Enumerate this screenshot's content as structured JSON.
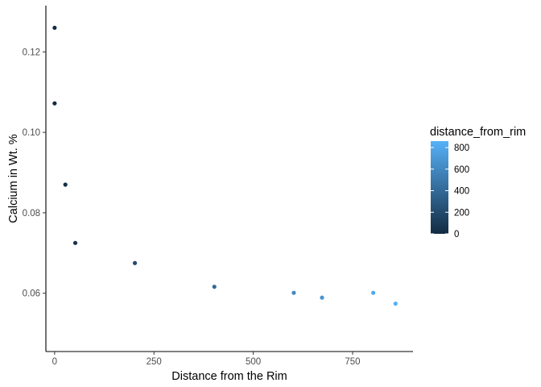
{
  "chart_data": {
    "type": "scatter",
    "title": "",
    "xlabel": "Distance from the Rim",
    "ylabel": "Calcium in Wt. %",
    "xlim": [
      -22,
      902
    ],
    "ylim": [
      0.0455,
      0.1315
    ],
    "x_ticks": [
      0,
      250,
      500,
      750
    ],
    "x_tick_labels": [
      "0",
      "250",
      "500",
      "750"
    ],
    "y_ticks": [
      0.06,
      0.08,
      0.1,
      0.12
    ],
    "y_tick_labels": [
      "0.06",
      "0.08",
      "0.10",
      "0.12"
    ],
    "grid": false,
    "legend_placement": "right",
    "color_scale": {
      "name": "distance_from_rim",
      "low": 0,
      "high": 860,
      "low_color": "#132b43",
      "high_color": "#56b1f7",
      "ticks": [
        0,
        200,
        400,
        600,
        800
      ],
      "tick_labels": [
        "0",
        "200",
        "400",
        "600",
        "800"
      ]
    },
    "points": [
      {
        "x": 0,
        "y": 0.126
      },
      {
        "x": 0,
        "y": 0.1072
      },
      {
        "x": 27,
        "y": 0.087
      },
      {
        "x": 52,
        "y": 0.0725
      },
      {
        "x": 202,
        "y": 0.0675
      },
      {
        "x": 402,
        "y": 0.0616
      },
      {
        "x": 602,
        "y": 0.0601
      },
      {
        "x": 673,
        "y": 0.0589
      },
      {
        "x": 802,
        "y": 0.0601
      },
      {
        "x": 858,
        "y": 0.0574
      }
    ]
  }
}
